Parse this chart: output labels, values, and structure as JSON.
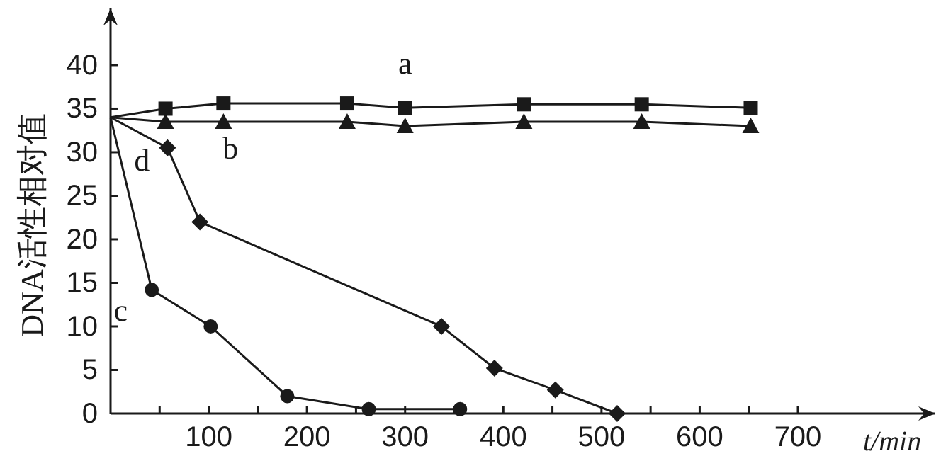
{
  "chart_data": {
    "type": "line",
    "xlabel": "t/min",
    "ylabel": "DNA活性相对值",
    "xlim": [
      0,
      840
    ],
    "ylim": [
      0,
      46.5
    ],
    "xticks": [
      {
        "value": 50,
        "label": null
      },
      100,
      {
        "value": 150,
        "label": null
      },
      200,
      {
        "value": 250,
        "label": null
      },
      300,
      {
        "value": 350,
        "label": null
      },
      400,
      {
        "value": 450,
        "label": null
      },
      500,
      {
        "value": 550,
        "label": null
      },
      600,
      {
        "value": 650,
        "label": null
      },
      700
    ],
    "yticks": [
      0,
      5,
      10,
      15,
      20,
      25,
      30,
      35,
      40
    ],
    "grid": false,
    "legend": false,
    "line_style": "solid",
    "series": [
      {
        "name": "a",
        "color": "#1a1a1a",
        "marker": "square",
        "x": [
          0,
          56,
          115,
          241,
          300,
          421,
          541,
          652
        ],
        "values": [
          34,
          35,
          35.6,
          35.6,
          35.1,
          35.5,
          35.5,
          35.1
        ]
      },
      {
        "name": "b",
        "color": "#1a1a1a",
        "marker": "triangle",
        "x": [
          0,
          56,
          115,
          241,
          300,
          421,
          541,
          652
        ],
        "values": [
          34,
          33.5,
          33.5,
          33.5,
          33,
          33.5,
          33.5,
          33
        ]
      },
      {
        "name": "c",
        "color": "#1a1a1a",
        "marker": "circle",
        "x": [
          0,
          42,
          102,
          180,
          263,
          356
        ],
        "values": [
          34,
          14.2,
          10,
          2,
          0.5,
          0.5
        ]
      },
      {
        "name": "d",
        "color": "#1a1a1a",
        "marker": "diamond",
        "x": [
          0,
          58,
          91,
          337,
          391,
          453,
          516
        ],
        "values": [
          34,
          30.5,
          22,
          10,
          5.2,
          2.7,
          0
        ]
      }
    ]
  }
}
